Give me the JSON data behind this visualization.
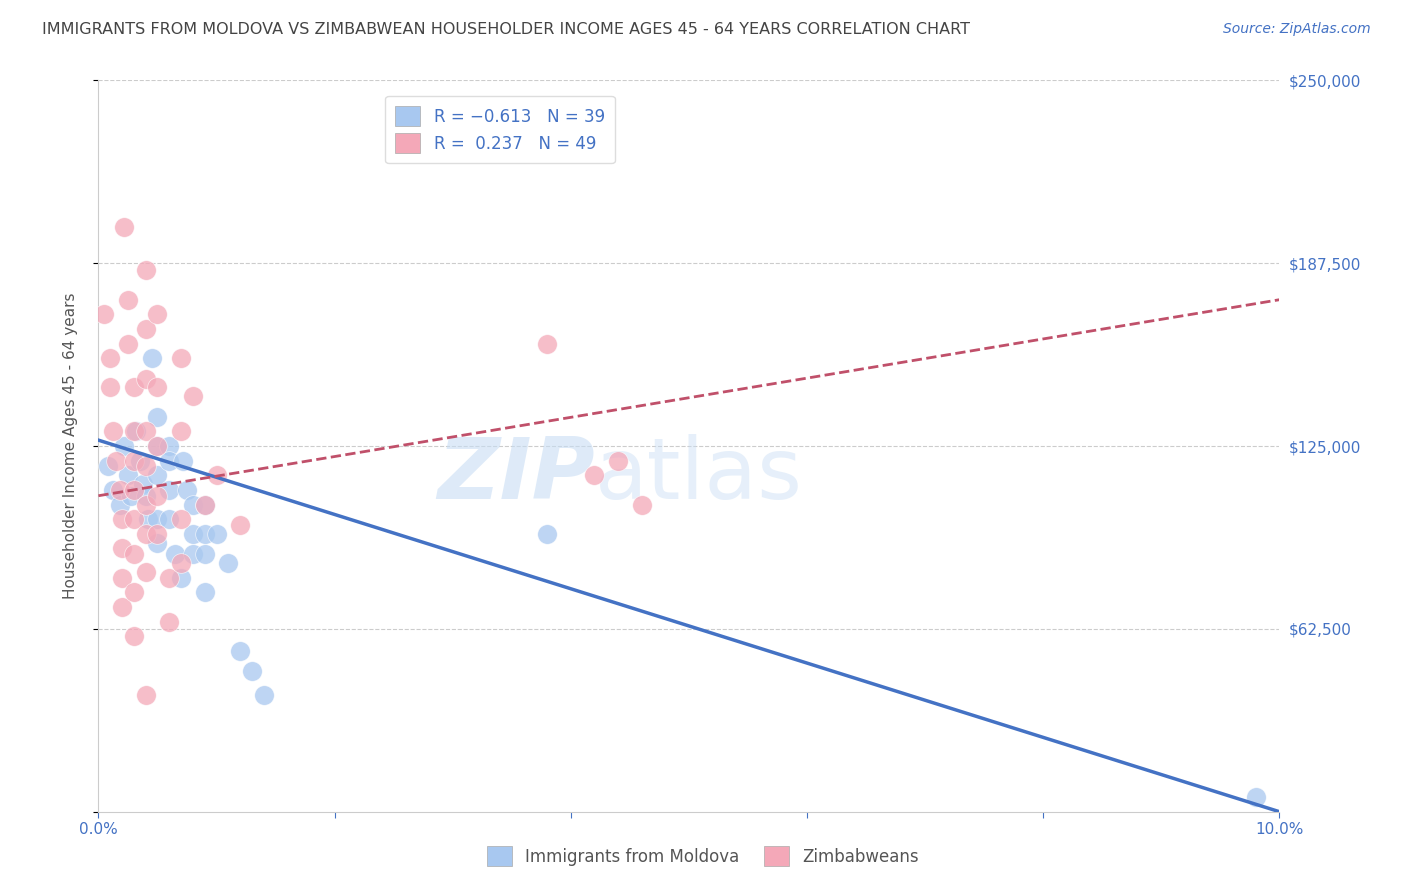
{
  "title": "IMMIGRANTS FROM MOLDOVA VS ZIMBABWEAN HOUSEHOLDER INCOME AGES 45 - 64 YEARS CORRELATION CHART",
  "source": "Source: ZipAtlas.com",
  "ylabel": "Householder Income Ages 45 - 64 years",
  "xlim": [
    0,
    0.1
  ],
  "ylim": [
    0,
    250000
  ],
  "yticks": [
    0,
    62500,
    125000,
    187500,
    250000
  ],
  "ytick_labels": [
    "",
    "$62,500",
    "$125,000",
    "$187,500",
    "$250,000"
  ],
  "xticks": [
    0.0,
    0.02,
    0.04,
    0.06,
    0.08,
    0.1
  ],
  "xtick_labels": [
    "0.0%",
    "",
    "",
    "",
    "",
    "10.0%"
  ],
  "watermark_zip": "ZIP",
  "watermark_atlas": "atlas",
  "legend_blue_r": "-0.613",
  "legend_blue_n": "39",
  "legend_pink_r": "0.237",
  "legend_pink_n": "49",
  "blue_scatter_color": "#a8c8f0",
  "pink_scatter_color": "#f4a8b8",
  "line_blue_color": "#4472c4",
  "line_pink_color": "#c0506a",
  "scatter_blue": [
    [
      0.0008,
      118000
    ],
    [
      0.0012,
      110000
    ],
    [
      0.0018,
      105000
    ],
    [
      0.0022,
      125000
    ],
    [
      0.0025,
      115000
    ],
    [
      0.0028,
      108000
    ],
    [
      0.0032,
      130000
    ],
    [
      0.0035,
      120000
    ],
    [
      0.0038,
      112000
    ],
    [
      0.004,
      108000
    ],
    [
      0.0042,
      100000
    ],
    [
      0.0045,
      155000
    ],
    [
      0.005,
      135000
    ],
    [
      0.005,
      125000
    ],
    [
      0.005,
      115000
    ],
    [
      0.005,
      100000
    ],
    [
      0.005,
      92000
    ],
    [
      0.006,
      125000
    ],
    [
      0.006,
      120000
    ],
    [
      0.006,
      110000
    ],
    [
      0.006,
      100000
    ],
    [
      0.0065,
      88000
    ],
    [
      0.007,
      80000
    ],
    [
      0.0072,
      120000
    ],
    [
      0.0075,
      110000
    ],
    [
      0.008,
      105000
    ],
    [
      0.008,
      95000
    ],
    [
      0.008,
      88000
    ],
    [
      0.009,
      105000
    ],
    [
      0.009,
      95000
    ],
    [
      0.009,
      88000
    ],
    [
      0.009,
      75000
    ],
    [
      0.01,
      95000
    ],
    [
      0.011,
      85000
    ],
    [
      0.012,
      55000
    ],
    [
      0.013,
      48000
    ],
    [
      0.014,
      40000
    ],
    [
      0.038,
      95000
    ],
    [
      0.098,
      5000
    ]
  ],
  "scatter_pink": [
    [
      0.0005,
      170000
    ],
    [
      0.001,
      155000
    ],
    [
      0.001,
      145000
    ],
    [
      0.0012,
      130000
    ],
    [
      0.0015,
      120000
    ],
    [
      0.0018,
      110000
    ],
    [
      0.002,
      100000
    ],
    [
      0.002,
      90000
    ],
    [
      0.002,
      80000
    ],
    [
      0.002,
      70000
    ],
    [
      0.0022,
      200000
    ],
    [
      0.0025,
      175000
    ],
    [
      0.0025,
      160000
    ],
    [
      0.003,
      145000
    ],
    [
      0.003,
      130000
    ],
    [
      0.003,
      120000
    ],
    [
      0.003,
      110000
    ],
    [
      0.003,
      100000
    ],
    [
      0.003,
      88000
    ],
    [
      0.003,
      75000
    ],
    [
      0.003,
      60000
    ],
    [
      0.004,
      185000
    ],
    [
      0.004,
      165000
    ],
    [
      0.004,
      148000
    ],
    [
      0.004,
      130000
    ],
    [
      0.004,
      118000
    ],
    [
      0.004,
      105000
    ],
    [
      0.004,
      95000
    ],
    [
      0.004,
      82000
    ],
    [
      0.004,
      40000
    ],
    [
      0.005,
      170000
    ],
    [
      0.005,
      145000
    ],
    [
      0.005,
      125000
    ],
    [
      0.005,
      108000
    ],
    [
      0.005,
      95000
    ],
    [
      0.006,
      80000
    ],
    [
      0.006,
      65000
    ],
    [
      0.007,
      155000
    ],
    [
      0.007,
      130000
    ],
    [
      0.007,
      100000
    ],
    [
      0.007,
      85000
    ],
    [
      0.008,
      142000
    ],
    [
      0.009,
      105000
    ],
    [
      0.01,
      115000
    ],
    [
      0.012,
      98000
    ],
    [
      0.038,
      160000
    ],
    [
      0.042,
      115000
    ],
    [
      0.044,
      120000
    ],
    [
      0.046,
      105000
    ]
  ],
  "blue_trend_x": [
    0.0,
    0.1
  ],
  "blue_trend_y": [
    127000,
    0
  ],
  "pink_trend_x": [
    0.0,
    0.1
  ],
  "pink_trend_y": [
    108000,
    175000
  ],
  "background_color": "#ffffff",
  "grid_color": "#cccccc",
  "title_color": "#444444",
  "axis_label_color": "#555555",
  "tick_color": "#4472c4",
  "title_fontsize": 11.5,
  "ylabel_fontsize": 11,
  "tick_fontsize": 11,
  "source_fontsize": 10
}
